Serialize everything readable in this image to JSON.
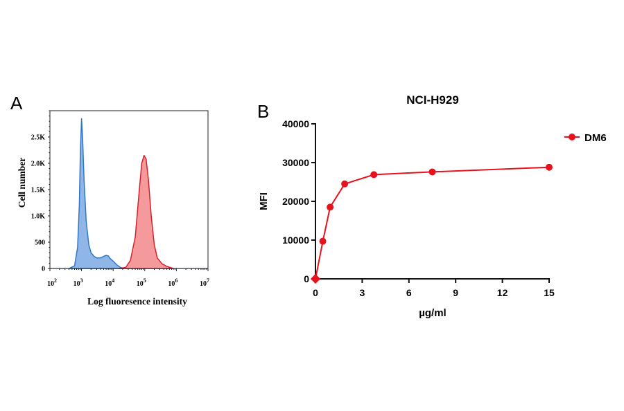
{
  "panel_labels": {
    "a": "A",
    "b": "B"
  },
  "chart_data": [
    {
      "type": "area",
      "title": "",
      "xlabel": "Log fluoresence intensity",
      "ylabel": "Cell number",
      "xscale": "log",
      "xlim": [
        100,
        10000000
      ],
      "ylim": [
        0,
        3000
      ],
      "x_tick_labels": [
        {
          "base": "10",
          "exp": "2"
        },
        {
          "base": "10",
          "exp": "3"
        },
        {
          "base": "10",
          "exp": "4"
        },
        {
          "base": "10",
          "exp": "5"
        },
        {
          "base": "10",
          "exp": "6"
        },
        {
          "base": "10",
          "exp": "7"
        }
      ],
      "y_ticks": [
        0,
        500,
        1000,
        1500,
        2000,
        2500
      ],
      "y_tick_labels": [
        "0",
        "500",
        "1.0K",
        "1.5K",
        "2.0K",
        "2.5K"
      ],
      "grid": false,
      "series": [
        {
          "color": "#2f78c8",
          "fill": "#8fb6e6",
          "x": [
            400,
            600,
            750,
            850,
            920,
            1000,
            1080,
            1200,
            1400,
            1700,
            2000,
            2500,
            3000,
            4000,
            5000,
            6000,
            7000,
            8000,
            10000,
            13000,
            17000,
            22000
          ],
          "y": [
            0,
            50,
            400,
            1200,
            2200,
            2850,
            2500,
            1700,
            900,
            450,
            300,
            230,
            200,
            200,
            230,
            250,
            240,
            190,
            140,
            70,
            20,
            0
          ]
        },
        {
          "color": "#d8202a",
          "fill": "#f4999c",
          "x": [
            15000,
            25000,
            35000,
            50000,
            65000,
            80000,
            95000,
            110000,
            130000,
            160000,
            200000,
            250000,
            350000,
            500000,
            800000
          ],
          "y": [
            0,
            20,
            150,
            600,
            1400,
            2000,
            2150,
            2080,
            1700,
            1000,
            450,
            200,
            90,
            40,
            0
          ]
        }
      ]
    },
    {
      "type": "line",
      "title": "NCI-H929",
      "xlabel": "µg/ml",
      "ylabel": "MFI",
      "xlim": [
        0,
        15
      ],
      "ylim": [
        0,
        40000
      ],
      "x_ticks": [
        0,
        3,
        6,
        9,
        12,
        15
      ],
      "y_ticks": [
        0,
        10000,
        20000,
        30000,
        40000
      ],
      "grid": false,
      "legend_position": "top-right",
      "series": [
        {
          "name": "DM6",
          "color": "#e8121c",
          "x": [
            0,
            0.47,
            0.94,
            1.875,
            3.75,
            7.5,
            15
          ],
          "y": [
            0,
            9700,
            18500,
            24500,
            26900,
            27600,
            28800
          ]
        }
      ]
    }
  ]
}
